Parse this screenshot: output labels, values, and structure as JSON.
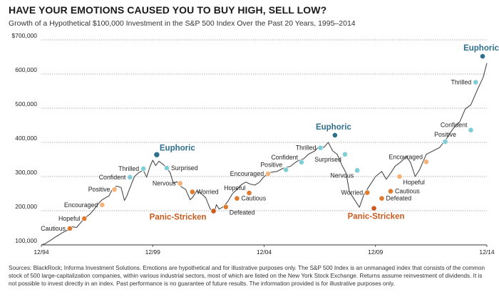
{
  "title": "HAVE YOUR EMOTIONS CAUSED YOU TO BUY HIGH, SELL LOW?",
  "subtitle": "Growth of a Hypothetical $100,000 Investment in the S&P 500 Index Over the Past 20 Years, 1995–2014",
  "footer": "Sources: BlackRock; Informa Investment Solutions. Emotions are hypothetical and for illustrative purposes only. The S&P 500 Index is an unmanaged index that consists of the common stock of 500 large-capitalization companies, within various industrial sectors, most of which are listed on the New York Stock Exchange. Returns assume reinvestment of dividends. It is not possible to invest directly in an index. Past performance is no guarantee of future results. The information provided is for illustrative purposes only.",
  "colors": {
    "line": "#4a4a4a",
    "grid": "#9a9a9a",
    "cool": "#2e6f8e",
    "cool_light": "#7fcdd6",
    "warm_light": "#f5b37a",
    "warm": "#e07a2e",
    "warm_dark": "#cc5a1e"
  },
  "chart_data": {
    "type": "line",
    "xlim": [
      1994.92,
      2014.92
    ],
    "ylim": [
      100000,
      700000
    ],
    "yticks": [
      100000,
      200000,
      300000,
      400000,
      500000,
      600000,
      700000
    ],
    "ytick_labels": [
      "100,000",
      "200,000",
      "300,000",
      "400,000",
      "500,000",
      "600,000",
      "$700,000"
    ],
    "xticks": [
      1994.92,
      1999.92,
      2004.92,
      2009.92,
      2014.92
    ],
    "xtick_labels": [
      "12/94",
      "12/99",
      "12/04",
      "12/09",
      "12/14"
    ],
    "grid": true,
    "series": [
      {
        "x": [
          1994.92,
          1995.1,
          1995.3,
          1995.5,
          1995.7,
          1995.9,
          1996.1,
          1996.3,
          1996.5,
          1996.7,
          1996.9,
          1997.1,
          1997.3,
          1997.5,
          1997.65,
          1997.8,
          1997.95,
          1998.1,
          1998.3,
          1998.5,
          1998.65,
          1998.75,
          1998.9,
          1999.1,
          1999.3,
          1999.5,
          1999.65,
          1999.8,
          1999.92,
          2000.05,
          2000.2,
          2000.4,
          2000.6,
          2000.7,
          2000.85,
          2001.0,
          2001.2,
          2001.4,
          2001.6,
          2001.72,
          2001.9,
          2002.1,
          2002.3,
          2002.5,
          2002.7,
          2002.78,
          2002.9,
          2003.1,
          2003.3,
          2003.5,
          2003.7,
          2003.9,
          2004.1,
          2004.3,
          2004.5,
          2004.7,
          2004.92,
          2005.2,
          2005.5,
          2005.8,
          2006.1,
          2006.4,
          2006.7,
          2006.9,
          2007.2,
          2007.4,
          2007.6,
          2007.8,
          2008.0,
          2008.2,
          2008.4,
          2008.6,
          2008.75,
          2008.9,
          2009.1,
          2009.2,
          2009.4,
          2009.6,
          2009.8,
          2009.92,
          2010.2,
          2010.4,
          2010.6,
          2010.8,
          2011.1,
          2011.3,
          2011.5,
          2011.7,
          2011.9,
          2012.2,
          2012.5,
          2012.8,
          2013.1,
          2013.4,
          2013.7,
          2013.95,
          2014.2,
          2014.5,
          2014.75,
          2014.92
        ],
        "values": [
          100000,
          104000,
          112000,
          121000,
          129000,
          137000,
          143000,
          153000,
          151000,
          166000,
          180000,
          190000,
          205000,
          222000,
          232000,
          238000,
          243000,
          262000,
          272000,
          268000,
          230000,
          242000,
          268000,
          300000,
          312000,
          318000,
          298000,
          330000,
          348000,
          332000,
          345000,
          335000,
          320000,
          312000,
          280000,
          285000,
          270000,
          262000,
          232000,
          240000,
          258000,
          250000,
          238000,
          205000,
          198000,
          218000,
          205000,
          212000,
          228000,
          250000,
          262000,
          276000,
          284000,
          278000,
          275000,
          283000,
          300000,
          312000,
          315000,
          325000,
          330000,
          345000,
          352000,
          365000,
          375000,
          390000,
          385000,
          400000,
          375000,
          365000,
          335000,
          310000,
          255000,
          240000,
          220000,
          210000,
          248000,
          268000,
          288000,
          300000,
          315000,
          292000,
          310000,
          330000,
          345000,
          360000,
          340000,
          300000,
          320000,
          365000,
          375000,
          385000,
          410000,
          440000,
          460000,
          498000,
          510000,
          555000,
          590000,
          632000
        ]
      }
    ],
    "markers": [
      {
        "label": "Cautious",
        "x": 1996.2,
        "y": 148000,
        "tone": "warm",
        "side": "left"
      },
      {
        "label": "Hopeful",
        "x": 1996.85,
        "y": 177000,
        "tone": "warm",
        "side": "left"
      },
      {
        "label": "Encouraged",
        "x": 1997.65,
        "y": 217000,
        "tone": "warm_light",
        "side": "left"
      },
      {
        "label": "Positive",
        "x": 1998.2,
        "y": 262000,
        "tone": "warm_light",
        "side": "left"
      },
      {
        "label": "Confident",
        "x": 1998.9,
        "y": 298000,
        "tone": "cool_light",
        "side": "left"
      },
      {
        "label": "Thrilled",
        "x": 1999.5,
        "y": 323000,
        "tone": "cool_light",
        "side": "left"
      },
      {
        "label": "Euphoric",
        "x": 2000.1,
        "y": 364000,
        "tone": "cool",
        "side": "right",
        "big": true
      },
      {
        "label": "Surprised",
        "x": 2000.55,
        "y": 325000,
        "tone": "cool_light",
        "side": "right"
      },
      {
        "label": "Nervous",
        "x": 2001.15,
        "y": 280000,
        "tone": "warm_light",
        "side": "left"
      },
      {
        "label": "Worried",
        "x": 2001.7,
        "y": 255000,
        "tone": "warm",
        "side": "right"
      },
      {
        "label": "Panic-Stricken",
        "x": 2002.65,
        "y": 199000,
        "tone": "warm_dark",
        "side": "big-left"
      },
      {
        "label": "Defeated",
        "x": 2003.2,
        "y": 211000,
        "tone": "warm",
        "side": "right-below"
      },
      {
        "label": "Cautious",
        "x": 2003.7,
        "y": 236000,
        "tone": "warm",
        "side": "right"
      },
      {
        "label": "Hopeful",
        "x": 2004.25,
        "y": 252000,
        "tone": "warm",
        "side": "left-above"
      },
      {
        "label": "Encouraged",
        "x": 2005.1,
        "y": 308000,
        "tone": "warm_light",
        "side": "left"
      },
      {
        "label": "Positive",
        "x": 2005.9,
        "y": 320000,
        "tone": "cool_light",
        "side": "left-above"
      },
      {
        "label": "Confident",
        "x": 2006.6,
        "y": 342000,
        "tone": "cool_light",
        "side": "left-above"
      },
      {
        "label": "Thrilled",
        "x": 2007.45,
        "y": 384000,
        "tone": "cool_light",
        "side": "left"
      },
      {
        "label": "Euphoric",
        "x": 2008.1,
        "y": 421000,
        "tone": "cool",
        "side": "big-above"
      },
      {
        "label": "Surprised",
        "x": 2008.55,
        "y": 365000,
        "tone": "cool_light",
        "side": "left-below"
      },
      {
        "label": "Nervous",
        "x": 2009.1,
        "y": 318000,
        "tone": "cool_light",
        "side": "left-below"
      },
      {
        "label": "Worried",
        "x": 2009.55,
        "y": 253000,
        "tone": "warm",
        "side": "left"
      },
      {
        "label": "Panic-Stricken",
        "x": 2009.85,
        "y": 207000,
        "tone": "warm_dark",
        "side": "big-below"
      },
      {
        "label": "Defeated",
        "x": 2010.2,
        "y": 236000,
        "tone": "warm",
        "side": "right"
      },
      {
        "label": "Cautious",
        "x": 2010.6,
        "y": 257000,
        "tone": "warm",
        "side": "right"
      },
      {
        "label": "Hopeful",
        "x": 2011.0,
        "y": 300000,
        "tone": "warm_light",
        "side": "right-below"
      },
      {
        "label": "Encouraged",
        "x": 2012.2,
        "y": 343000,
        "tone": "warm_light",
        "side": "left-above"
      },
      {
        "label": "Positive",
        "x": 2013.05,
        "y": 402000,
        "tone": "cool_light",
        "side": "above"
      },
      {
        "label": "Confident",
        "x": 2014.2,
        "y": 436000,
        "tone": "cool_light",
        "side": "left-above"
      },
      {
        "label": "Thrilled",
        "x": 2016.35,
        "y": 576000,
        "tone": "cool_light",
        "side": "left"
      },
      {
        "label": "Euphoric",
        "x": 2017.25,
        "y": 652000,
        "tone": "cool",
        "side": "big-above"
      }
    ]
  }
}
